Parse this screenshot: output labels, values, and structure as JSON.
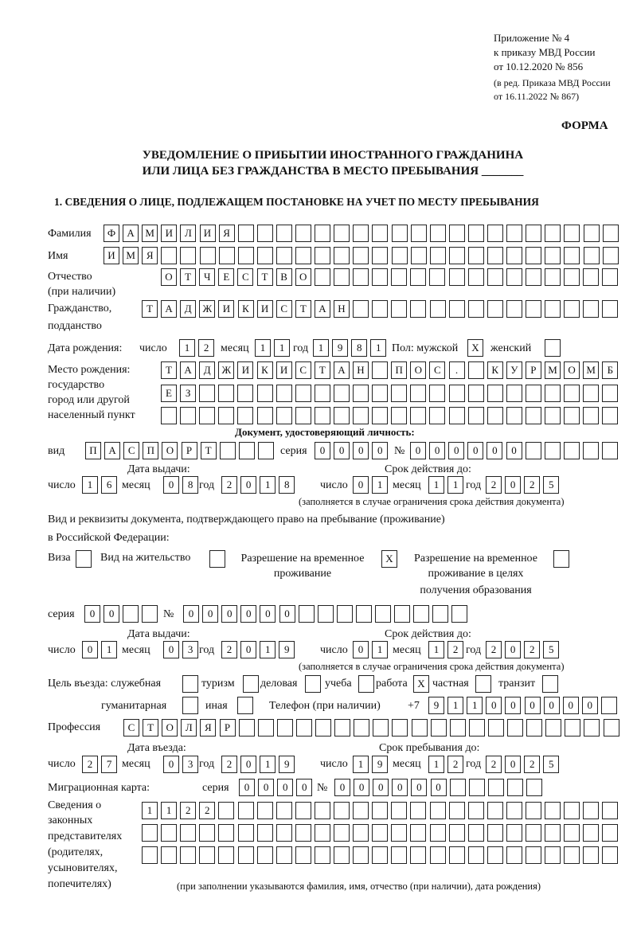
{
  "header": {
    "appendix": "Приложение № 4",
    "order": "к приказу МВД России",
    "order_date": "от 10.12.2020 № 856",
    "edition1": "(в ред. Приказа МВД России",
    "edition2": "от 16.11.2022 № 867)",
    "form": "ФОРМА",
    "title1": "УВЕДОМЛЕНИЕ О ПРИБЫТИИ ИНОСТРАННОГО ГРАЖДАНИНА",
    "title2": "ИЛИ ЛИЦА БЕЗ ГРАЖДАНСТВА В МЕСТО ПРЕБЫВАНИЯ _______",
    "section1": "1. СВЕДЕНИЯ О ЛИЦЕ, ПОДЛЕЖАЩЕМ ПОСТАНОВКЕ НА УЧЕТ ПО МЕСТУ ПРЕБЫВАНИЯ"
  },
  "labels": {
    "surname": "Фамилия",
    "name": "Имя",
    "patronymic": "Отчество",
    "patronymic2": "(при наличии)",
    "citizenship": "Гражданство,",
    "citizenship2": "подданство",
    "birth_date": "Дата рождения:",
    "day": "число",
    "month": "месяц",
    "year": "год",
    "sex": "Пол: мужской",
    "female": "женский",
    "birthplace1": "Место рождения:",
    "birthplace2": "государство",
    "birthplace3": "город или другой",
    "birthplace4": "населенный пункт",
    "id_doc": "Документ, удостоверяющий личность:",
    "kind": "вид",
    "series": "серия",
    "number": "№",
    "issue_date": "Дата выдачи:",
    "valid_until": "Срок действия до:",
    "validity_note": "(заполняется в случае ограничения срока действия документа)",
    "right_doc1": "Вид и реквизиты документа, подтверждающего право на пребывание (проживание)",
    "right_doc2": "в Российской Федерации:",
    "visa": "Виза",
    "residence": "Вид на жительство",
    "trp1": "Разрешение на временное",
    "trp2": "проживание",
    "trp_edu1": "Разрешение на временное",
    "trp_edu2": "проживание в целях",
    "trp_edu3": "получения образования",
    "purpose": "Цель въезда: служебная",
    "tourism": "туризм",
    "business": "деловая",
    "study": "учеба",
    "work": "работа",
    "private": "частная",
    "transit": "транзит",
    "humanitarian": "гуманитарная",
    "other": "иная",
    "phone": "Телефон (при наличии)",
    "phone_prefix": "+7",
    "profession": "Профессия",
    "entry_date": "Дата въезда:",
    "stay_until": "Срок пребывания до:",
    "migration_card": "Миграционная карта:",
    "reps1": "Сведения о",
    "reps2": "законных",
    "reps3": "представителях",
    "reps4": "(родителях,",
    "reps5": "усыновителях,",
    "reps6": "попечителях)",
    "reps_note": "(при заполнении указываются фамилия, имя, отчество (при наличии), дата рождения)"
  },
  "fields": {
    "surname": [
      "Ф",
      "А",
      "М",
      "И",
      "Л",
      "И",
      "Я"
    ],
    "name": [
      "И",
      "М",
      "Я"
    ],
    "patronymic": [
      "О",
      "Т",
      "Ч",
      "Е",
      "С",
      "Т",
      "В",
      "О"
    ],
    "citizenship": [
      "Т",
      "А",
      "Д",
      "Ж",
      "И",
      "К",
      "И",
      "С",
      "Т",
      "А",
      "Н"
    ],
    "birth_day": [
      "1",
      "2"
    ],
    "birth_month": [
      "1",
      "1"
    ],
    "birth_year": [
      "1",
      "9",
      "8",
      "1"
    ],
    "sex_male": [
      "X"
    ],
    "sex_female": [],
    "birthplace_row1": [
      "Т",
      "А",
      "Д",
      "Ж",
      "И",
      "К",
      "И",
      "С",
      "Т",
      "А",
      "Н",
      "",
      "П",
      "О",
      "С",
      ".",
      "",
      "К",
      "У",
      "Р",
      "М",
      "О",
      "М",
      "Б"
    ],
    "birthplace_row2": [
      "Е",
      "З"
    ],
    "birthplace_row3": [],
    "doc_kind": [
      "П",
      "А",
      "С",
      "П",
      "О",
      "Р",
      "Т"
    ],
    "doc_series": [
      "0",
      "0",
      "0",
      "0"
    ],
    "doc_number": [
      "0",
      "0",
      "0",
      "0",
      "0",
      "0"
    ],
    "doc_issue_day": [
      "1",
      "6"
    ],
    "doc_issue_month": [
      "0",
      "8"
    ],
    "doc_issue_year": [
      "2",
      "0",
      "1",
      "8"
    ],
    "doc_valid_day": [
      "0",
      "1"
    ],
    "doc_valid_month": [
      "1",
      "1"
    ],
    "doc_valid_year": [
      "2",
      "0",
      "2",
      "5"
    ],
    "visa": [],
    "residence": [],
    "trp": [
      "X"
    ],
    "trp_edu": [],
    "right_series": [
      "0",
      "0"
    ],
    "right_number": [
      "0",
      "0",
      "0",
      "0",
      "0",
      "0"
    ],
    "right_issue_day": [
      "0",
      "1"
    ],
    "right_issue_month": [
      "0",
      "3"
    ],
    "right_issue_year": [
      "2",
      "0",
      "1",
      "9"
    ],
    "right_valid_day": [
      "0",
      "1"
    ],
    "right_valid_month": [
      "1",
      "2"
    ],
    "right_valid_year": [
      "2",
      "0",
      "2",
      "5"
    ],
    "purpose_official": [],
    "purpose_tourism": [],
    "purpose_business": [],
    "purpose_study": [],
    "purpose_work": [
      "X"
    ],
    "purpose_private": [],
    "purpose_transit": [],
    "purpose_humanitarian": [],
    "purpose_other": [],
    "phone": [
      "9",
      "1",
      "1",
      "0",
      "0",
      "0",
      "0",
      "0",
      "0"
    ],
    "profession": [
      "С",
      "Т",
      "О",
      "Л",
      "Я",
      "Р"
    ],
    "entry_day": [
      "2",
      "7"
    ],
    "entry_month": [
      "0",
      "3"
    ],
    "entry_year": [
      "2",
      "0",
      "1",
      "9"
    ],
    "stay_day": [
      "1",
      "9"
    ],
    "stay_month": [
      "1",
      "2"
    ],
    "stay_year": [
      "2",
      "0",
      "2",
      "5"
    ],
    "mc_series": [
      "0",
      "0",
      "0",
      "0"
    ],
    "mc_number": [
      "0",
      "0",
      "0",
      "0",
      "0",
      "0"
    ],
    "reps_row1": [
      "1",
      "1",
      "2",
      "2"
    ],
    "reps_row2": [],
    "reps_row3": []
  }
}
